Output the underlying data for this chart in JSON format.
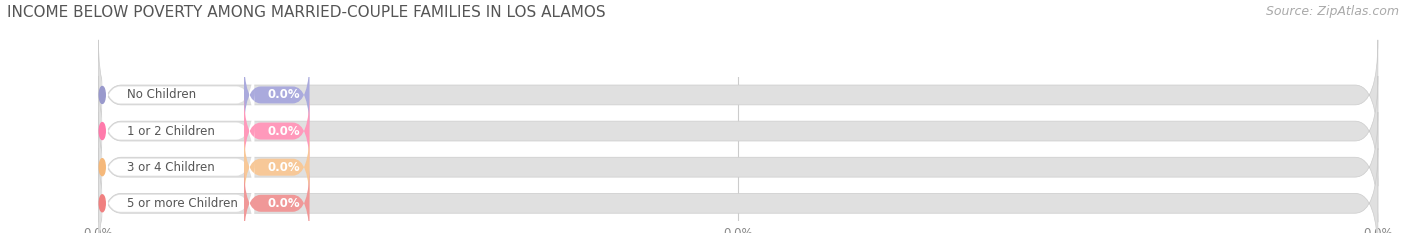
{
  "title": "INCOME BELOW POVERTY AMONG MARRIED-COUPLE FAMILIES IN LOS ALAMOS",
  "source": "Source: ZipAtlas.com",
  "categories": [
    "No Children",
    "1 or 2 Children",
    "3 or 4 Children",
    "5 or more Children"
  ],
  "values": [
    0.0,
    0.0,
    0.0,
    0.0
  ],
  "bar_colors": [
    "#9999cc",
    "#ff7aab",
    "#f5b87a",
    "#f08080"
  ],
  "bar_mid_colors": [
    "#aaaadd",
    "#ff99bb",
    "#f7c898",
    "#f09898"
  ],
  "background_color": "#ffffff",
  "plot_bg_color": "#ffffff",
  "bar_bg_color": "#e0e0e0",
  "bar_bg_light": "#ebebeb",
  "pill_colors": [
    "#aaaadd",
    "#ff99bb",
    "#f7c898",
    "#f09898"
  ],
  "title_fontsize": 11,
  "label_fontsize": 8.5,
  "value_fontsize": 8.5,
  "source_fontsize": 9
}
